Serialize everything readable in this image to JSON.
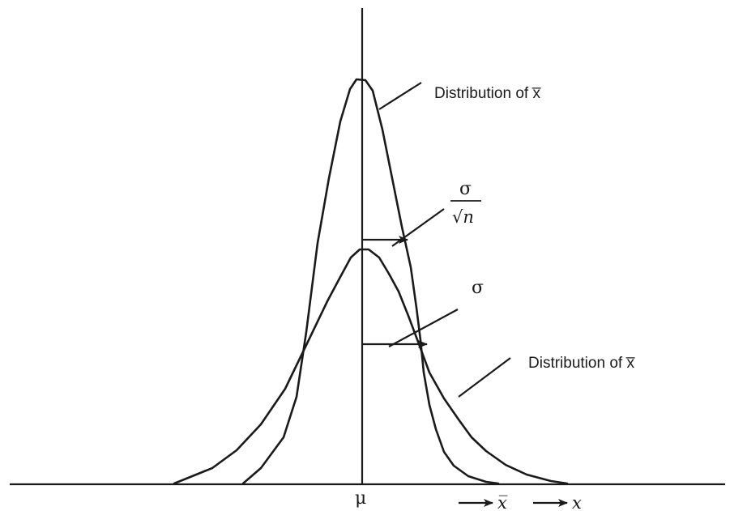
{
  "labels": {
    "narrow_curve": "Distribution of x̅",
    "wide_curve": "Distribution of x̅",
    "sigma_over_root_n": {
      "numerator": "σ",
      "denominator": "√n"
    },
    "sigma": "σ",
    "mu": "μ",
    "axis_xbar": "x̅",
    "axis_x": "x"
  },
  "colors": {
    "ink": "#1a1a1a",
    "background": "#ffffff"
  }
}
